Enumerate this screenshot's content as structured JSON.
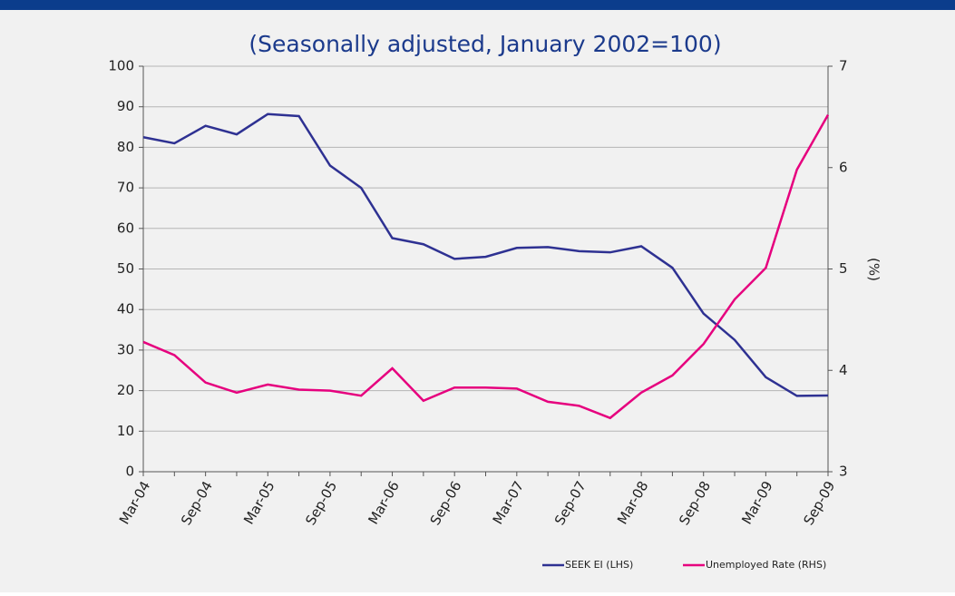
{
  "chart_data": {
    "type": "line",
    "title": "(Seasonally adjusted, January 2002=100)",
    "y2_label": "(%)",
    "categories": [
      "Mar-04",
      null,
      "Sep-04",
      null,
      "Mar-05",
      null,
      "Sep-05",
      null,
      "Mar-06",
      null,
      "Sep-06",
      null,
      "Mar-07",
      null,
      "Sep-07",
      null,
      "Mar-08",
      null,
      "Sep-08",
      null,
      "Mar-09",
      null,
      "Sep-09"
    ],
    "series": [
      {
        "name": "SEEK EI (LHS)",
        "color": "#2e3192",
        "axis": "y",
        "values": [
          82.5,
          81,
          85.3,
          83.2,
          88.2,
          87.7,
          75.5,
          70,
          57.6,
          56.1,
          52.5,
          53,
          55.2,
          55.4,
          54.4,
          54.1,
          55.6,
          50.3,
          39,
          32.5,
          23.3,
          18.7,
          18.8
        ]
      },
      {
        "name": "Unemployed Rate (RHS)",
        "color": "#e6007e",
        "axis": "y2",
        "values": [
          4.28,
          4.15,
          3.88,
          3.78,
          3.86,
          3.81,
          3.8,
          3.75,
          4.02,
          3.7,
          3.83,
          3.83,
          3.82,
          3.69,
          3.65,
          3.53,
          3.78,
          3.95,
          4.26,
          4.7,
          5.01,
          5.98,
          6.52
        ]
      }
    ],
    "ylim": [
      0,
      100
    ],
    "yticks": [
      0,
      10,
      20,
      30,
      40,
      50,
      60,
      70,
      80,
      90,
      100
    ],
    "y2lim": [
      3,
      7
    ],
    "y2ticks": [
      3,
      4,
      5,
      6,
      7
    ],
    "grid": true,
    "legend": "bottom-right"
  }
}
